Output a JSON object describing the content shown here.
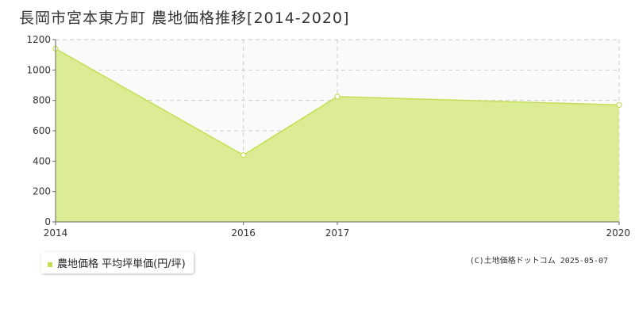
{
  "title": "長岡市宮本東方町 農地価格推移[2014-2020]",
  "legend": {
    "label": "農地価格 平均坪単価(円/坪)"
  },
  "copyright": "(C)土地価格ドットコム 2025-05-07",
  "colors": {
    "fill": "#dcec94",
    "line": "#c3df55",
    "grid": "#cccccc",
    "plot_bg": "#fafafa",
    "axis": "#666666"
  },
  "chart_data": {
    "type": "area",
    "title": "長岡市宮本東方町 農地価格推移[2014-2020]",
    "xlabel": "",
    "ylabel": "",
    "x": [
      "2014",
      "2016",
      "2017",
      "2020"
    ],
    "series": [
      {
        "name": "農地価格 平均坪単価(円/坪)",
        "values": [
          1140,
          440,
          825,
          770
        ]
      }
    ],
    "ylim": [
      0,
      1200
    ],
    "yticks": [
      0,
      200,
      400,
      600,
      800,
      1000,
      1200
    ],
    "grid": true,
    "legend_position": "bottom-left"
  }
}
